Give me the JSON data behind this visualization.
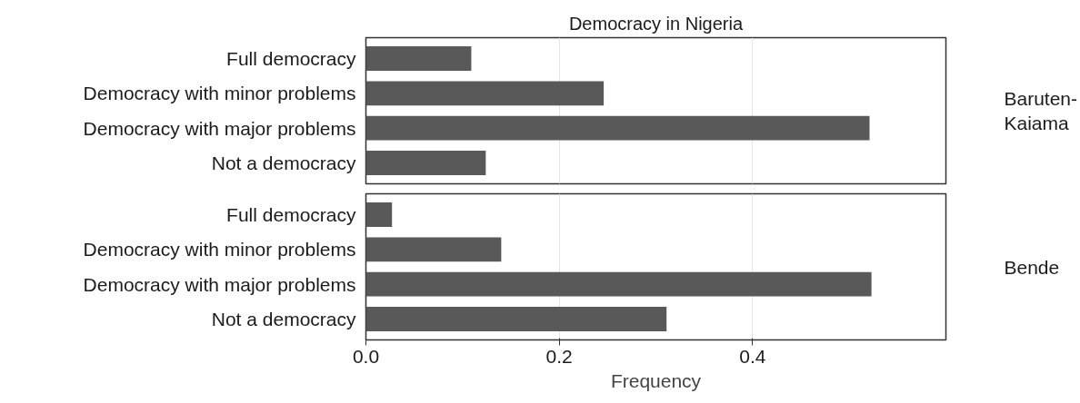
{
  "chart_data": [
    {
      "type": "bar",
      "orientation": "horizontal",
      "title": "Democracy in Nigeria",
      "y2label": "Baruten-Kaiama",
      "categories": [
        "Full democracy",
        "Democracy with minor problems",
        "Democracy with major problems",
        "Not a democracy"
      ],
      "values": [
        0.109,
        0.246,
        0.521,
        0.124
      ],
      "color": "#595959",
      "xlim": [
        0,
        0.6
      ],
      "xticks": [
        {
          "value": 0,
          "label": null
        },
        {
          "value": 0.2,
          "label": null
        },
        {
          "value": 0.4,
          "label": null
        }
      ],
      "grid": "x",
      "tick_labels": "y"
    },
    {
      "type": "bar",
      "orientation": "horizontal",
      "y2label": "Bende",
      "xlabel": "Frequency",
      "categories": [
        "Full democracy",
        "Democracy with minor problems",
        "Democracy with major problems",
        "Not a democracy"
      ],
      "values": [
        0.027,
        0.14,
        0.523,
        0.311
      ],
      "color": "#595959",
      "xlim": [
        0,
        0.6
      ],
      "xticks": [
        {
          "value": 0,
          "label": "0.0"
        },
        0.2,
        0.4
      ],
      "grid": "x"
    }
  ]
}
